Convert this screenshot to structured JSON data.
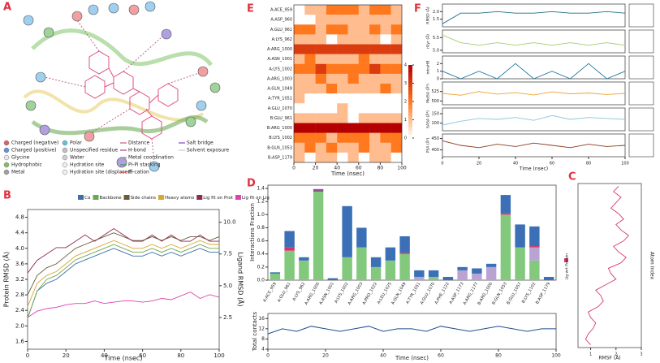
{
  "panel_labels": [
    "A",
    "B",
    "C",
    "D",
    "E",
    "F"
  ],
  "diagram_legend": [
    "Charged (negative)",
    "Charged (positive)",
    "Glycine",
    "Hydrophobic",
    "Metal",
    "Polar",
    "Unspecified residue",
    "Water",
    "Hydration site",
    "Hydration site (displaced)",
    "Distance",
    "H-bond",
    "Metal coordination",
    "Pi-Pi stacking",
    "Pi-cation",
    "Salt bridge",
    "Solvent exposure"
  ],
  "chart_data": [
    {
      "type": "line",
      "xlabel": "Time (nsec)",
      "ylabel": "Protein RMSD (Å)",
      "y2label": "Ligand RMSD (Å)",
      "x": [
        0,
        5,
        10,
        15,
        20,
        25,
        30,
        35,
        40,
        45,
        50,
        55,
        60,
        65,
        70,
        75,
        80,
        85,
        90,
        95,
        100
      ],
      "xlim": [
        0,
        100
      ],
      "xticks": [
        0,
        20,
        40,
        60,
        80,
        100
      ],
      "ylim": [
        1.4,
        5.0
      ],
      "yticks": [
        1.6,
        {
          "value": 2,
          "label": "2.0"
        },
        2.4,
        2.8,
        3.2,
        3.6,
        {
          "value": 4,
          "label": "4.0"
        },
        4.4,
        4.8
      ],
      "y2lim": [
        0,
        11
      ],
      "y2ticks": [
        2.5,
        {
          "value": 5,
          "label": "5.0"
        },
        7.5,
        {
          "value": 10,
          "label": "10.0"
        }
      ],
      "series": [
        {
          "name": "Cα",
          "color": "#3d6fa6",
          "values": [
            2.2,
            2.9,
            3.1,
            3.2,
            3.4,
            3.6,
            3.7,
            3.8,
            3.9,
            4.0,
            3.9,
            3.8,
            3.8,
            3.9,
            3.8,
            3.9,
            3.8,
            3.9,
            4.0,
            3.9,
            3.9
          ]
        },
        {
          "name": "Backbone",
          "color": "#6aa84f",
          "values": [
            2.2,
            2.9,
            3.2,
            3.3,
            3.5,
            3.7,
            3.8,
            3.9,
            4.0,
            4.1,
            4.0,
            3.9,
            3.9,
            4.0,
            3.9,
            4.0,
            3.9,
            4.0,
            4.1,
            4.0,
            4.0
          ]
        },
        {
          "name": "Side chains",
          "color": "#6b5a3a",
          "values": [
            2.8,
            3.3,
            3.5,
            3.6,
            3.8,
            4.0,
            4.1,
            4.2,
            4.3,
            4.4,
            4.3,
            4.2,
            4.2,
            4.3,
            4.2,
            4.3,
            4.2,
            4.3,
            4.3,
            4.2,
            4.3
          ]
        },
        {
          "name": "Heavy atoms",
          "color": "#d9a62e",
          "values": [
            2.5,
            3.1,
            3.3,
            3.4,
            3.6,
            3.8,
            3.9,
            4.0,
            4.1,
            4.2,
            4.1,
            4.0,
            4.0,
            4.1,
            4.0,
            4.1,
            4.0,
            4.1,
            4.2,
            4.1,
            4.1
          ]
        },
        {
          "name": "Lig fit on Prot",
          "color": "#8e2a4a",
          "axis": "y2",
          "values": [
            6.0,
            7.0,
            7.5,
            8.0,
            8.0,
            8.5,
            9.0,
            8.5,
            9.0,
            9.5,
            9.0,
            8.5,
            8.5,
            9.0,
            8.5,
            9.0,
            8.5,
            8.5,
            9.0,
            8.5,
            8.5
          ]
        },
        {
          "name": "Lig fit on Lig",
          "color": "#e040b0",
          "axis": "y2",
          "values": [
            2.5,
            3.0,
            3.2,
            3.3,
            3.5,
            3.6,
            3.6,
            3.8,
            3.6,
            3.7,
            3.8,
            3.8,
            3.7,
            3.8,
            4.0,
            3.9,
            4.2,
            4.5,
            4.0,
            4.3,
            4.1
          ]
        }
      ]
    },
    {
      "type": "stacked-bar",
      "ylabel": "Interactions Fraction",
      "categories": [
        "A:ACE_959",
        "A:GLU_961",
        "A:LYS_962",
        "A:ARG_1000",
        "A:ASN_1001",
        "A:LYS_1002",
        "A:ARG_1003",
        "A:PRO_1022",
        "A:LEU_1025",
        "A:GLN_1049",
        "A:TYR_1051",
        "A:GLU_1070",
        "A:PHE_1122",
        "A:ASP_1173",
        "A:ARG_1177",
        "B:ARG_1000",
        "B:GLN_1053",
        "B:GLU_1057",
        "B:LYS_1102",
        "B:ASP_1179"
      ],
      "ylim": [
        0,
        1.45
      ],
      "yticks": [
        {
          "value": 0,
          "label": "0.0"
        },
        {
          "value": 0.2,
          "label": "0.2"
        },
        {
          "value": 0.4,
          "label": "0.4"
        },
        {
          "value": 0.6,
          "label": "0.6"
        },
        {
          "value": 0.8,
          "label": "0.8"
        },
        {
          "value": 1,
          "label": "1.0"
        },
        {
          "value": 1.2,
          "label": "1.2"
        },
        {
          "value": 1.4,
          "label": "1.4"
        }
      ],
      "series": [
        {
          "color": "#82c97e",
          "values": [
            0.1,
            0.45,
            0.3,
            1.35,
            0,
            0.35,
            0.5,
            0.2,
            0.3,
            0.4,
            0,
            0.05,
            0,
            0,
            0,
            0,
            1.0,
            0.5,
            0.3,
            0
          ]
        },
        {
          "color": "#b9a3d3",
          "values": [
            0,
            0,
            0,
            0,
            0,
            0,
            0,
            0,
            0,
            0,
            0.05,
            0,
            0,
            0.15,
            0.1,
            0.2,
            0,
            0,
            0.2,
            0
          ]
        },
        {
          "color": "#d6336c",
          "values": [
            0,
            0.05,
            0,
            0.02,
            0,
            0,
            0,
            0,
            0,
            0.02,
            0,
            0,
            0,
            0,
            0,
            0,
            0.02,
            0,
            0.02,
            0
          ]
        },
        {
          "color": "#3b6fb6",
          "values": [
            0.02,
            0.25,
            0.05,
            0.02,
            0.03,
            0.78,
            0.3,
            0.15,
            0.2,
            0.25,
            0.1,
            0.1,
            0.05,
            0.05,
            0.08,
            0.05,
            0.28,
            0.35,
            0.3,
            0.05
          ]
        }
      ]
    },
    {
      "type": "line",
      "xlabel": "Time (nsec)",
      "ylabel": "Total contacts",
      "color": "#1f4e8c",
      "x": [
        0,
        5,
        10,
        15,
        20,
        25,
        30,
        35,
        40,
        45,
        50,
        55,
        60,
        65,
        70,
        75,
        80,
        85,
        90,
        95,
        100
      ],
      "values": [
        10,
        12,
        11,
        13,
        12,
        11,
        12,
        13,
        11,
        12,
        12,
        11,
        13,
        12,
        11,
        12,
        13,
        12,
        11,
        12,
        12
      ],
      "xlim": [
        0,
        100
      ],
      "xticks": [
        0,
        20,
        40,
        60,
        80,
        100
      ],
      "ylim": [
        4,
        18
      ],
      "yticks": [
        4,
        8,
        12,
        16
      ]
    },
    {
      "type": "heatmap",
      "xlabel": "Time (nsec)",
      "rows": [
        "A:ACE_959",
        "A:ASP_960",
        "A:GLU_961",
        "A:LYS_962",
        "A:ARG_1000",
        "A:ASN_1001",
        "A:LYS_1002",
        "A:ARG_1003",
        "A:GLN_1049",
        "A:TYR_1051",
        "A:GLU_1070",
        "B:GLU_961",
        "B:ARG_1000",
        "B:LYS_1002",
        "B:GLN_1053",
        "B:ASP_1179"
      ],
      "xlim": [
        0,
        100
      ],
      "xticks": [
        0,
        20,
        40,
        60,
        80,
        100
      ],
      "clim": [
        0,
        4
      ],
      "cticks": [
        0,
        1,
        2,
        3,
        4
      ],
      "values": [
        [
          0,
          1,
          1,
          2,
          2,
          2,
          1,
          2,
          2,
          1
        ],
        [
          0,
          0,
          1,
          1,
          1,
          1,
          1,
          1,
          1,
          1
        ],
        [
          2,
          2,
          1,
          2,
          2,
          1,
          1,
          2,
          1,
          2
        ],
        [
          1,
          1,
          1,
          0,
          1,
          1,
          1,
          1,
          0,
          1
        ],
        [
          3,
          3,
          3,
          3,
          3,
          3,
          3,
          3,
          3,
          3
        ],
        [
          1,
          2,
          1,
          1,
          1,
          1,
          2,
          1,
          1,
          1
        ],
        [
          2,
          2,
          3,
          2,
          2,
          2,
          2,
          3,
          2,
          2
        ],
        [
          1,
          1,
          2,
          1,
          1,
          2,
          1,
          1,
          1,
          1
        ],
        [
          1,
          1,
          1,
          2,
          1,
          1,
          1,
          1,
          2,
          1
        ],
        [
          1,
          0,
          0,
          0,
          0,
          0,
          0,
          0,
          0,
          0
        ],
        [
          0,
          0,
          0,
          0,
          1,
          0,
          0,
          0,
          0,
          0
        ],
        [
          1,
          1,
          1,
          1,
          1,
          0,
          1,
          1,
          1,
          1
        ],
        [
          4,
          4,
          4,
          4,
          4,
          4,
          4,
          4,
          4,
          4
        ],
        [
          2,
          2,
          2,
          1,
          2,
          2,
          2,
          1,
          2,
          2
        ],
        [
          1,
          2,
          1,
          2,
          1,
          1,
          2,
          1,
          1,
          2
        ],
        [
          1,
          0,
          1,
          1,
          0,
          1,
          0,
          1,
          1,
          0
        ]
      ]
    },
    {
      "type": "line",
      "ylabel": "RMSD (Å)",
      "color": "#1f6f8b",
      "x": [
        0,
        10,
        20,
        30,
        40,
        50,
        60,
        70,
        80,
        90,
        100
      ],
      "values": [
        1.2,
        1.9,
        1.9,
        2.0,
        1.9,
        1.9,
        2.0,
        1.9,
        1.9,
        2.0,
        1.9
      ],
      "xlim": [
        0,
        100
      ],
      "ylim": [
        1,
        2.5
      ],
      "yticks": [
        1.5,
        {
          "value": 2,
          "label": "2.0"
        }
      ]
    },
    {
      "type": "line",
      "ylabel": "rGyr (Å)",
      "color": "#9dd26b",
      "x": [
        0,
        10,
        20,
        30,
        40,
        50,
        60,
        70,
        80,
        90,
        100
      ],
      "values": [
        5.6,
        5.3,
        5.2,
        5.3,
        5.2,
        5.3,
        5.2,
        5.3,
        5.2,
        5.3,
        5.2
      ],
      "xlim": [
        0,
        100
      ],
      "ylim": [
        4.9,
        5.8
      ],
      "yticks": [
        {
          "value": 5,
          "label": "5.0"
        },
        5.5
      ]
    },
    {
      "type": "line",
      "ylabel": "intraHB",
      "color": "#1f77a0",
      "x": [
        0,
        10,
        20,
        30,
        40,
        50,
        60,
        70,
        80,
        90,
        100
      ],
      "values": [
        1,
        0,
        1,
        0,
        2,
        0,
        1,
        0,
        2,
        0,
        1
      ],
      "xlim": [
        0,
        100
      ],
      "ylim": [
        0,
        3
      ],
      "yticks": [
        0,
        1,
        2
      ]
    },
    {
      "type": "line",
      "ylabel": "MolSA (Å²)",
      "color": "#f0a030",
      "x": [
        0,
        10,
        20,
        30,
        40,
        50,
        60,
        70,
        80,
        90,
        100
      ],
      "values": [
        520,
        515,
        525,
        518,
        522,
        516,
        524,
        519,
        521,
        517,
        520
      ],
      "xlim": [
        0,
        100
      ],
      "ylim": [
        490,
        550
      ],
      "yticks": [
        500,
        525
      ]
    },
    {
      "type": "line",
      "ylabel": "SASA (Å²)",
      "color": "#8ac4e0",
      "x": [
        0,
        10,
        20,
        30,
        40,
        50,
        60,
        70,
        80,
        90,
        100
      ],
      "values": [
        90,
        110,
        125,
        120,
        130,
        115,
        140,
        120,
        130,
        125,
        120
      ],
      "xlim": [
        0,
        100
      ],
      "ylim": [
        60,
        180
      ],
      "yticks": [
        100,
        150
      ]
    },
    {
      "type": "line",
      "ylabel": "PSA (Å²)",
      "xlabel": "Time (nsec)",
      "color": "#8b3a1a",
      "x": [
        0,
        10,
        20,
        30,
        40,
        50,
        60,
        70,
        80,
        90,
        100
      ],
      "values": [
        440,
        420,
        410,
        425,
        415,
        430,
        420,
        410,
        425,
        415,
        420
      ],
      "xlim": [
        0,
        100
      ],
      "xticks": [
        0,
        20,
        40,
        60,
        80,
        100
      ],
      "ylim": [
        370,
        470
      ],
      "yticks": [
        400,
        450
      ]
    },
    {
      "type": "line",
      "orientation": "horizontal",
      "xlabel": "Atom Index",
      "ylabel": "RMSF (Å)",
      "color": "#d63a6a",
      "legend_name": "Lig wrt Protein",
      "x": [
        1,
        2,
        3,
        4,
        5,
        6,
        7,
        8,
        9,
        10,
        11,
        12,
        13,
        14,
        15,
        16,
        17,
        18,
        19,
        20,
        21,
        22,
        23,
        24,
        25,
        26,
        27,
        28,
        29,
        30
      ],
      "values": [
        1.0,
        0.8,
        0.9,
        1.1,
        1.2,
        1.0,
        0.9,
        1.3,
        1.5,
        1.4,
        1.2,
        1.6,
        2.0,
        1.8,
        1.7,
        2.2,
        2.4,
        2.1,
        1.9,
        2.3,
        2.5,
        2.2,
        2.0,
        2.3,
        2.1,
        1.8,
        2.0,
        2.2,
        1.9,
        2.1
      ],
      "xlim": [
        0.5,
        30.5
      ],
      "ylim": [
        0.5,
        3
      ],
      "yticks": [
        1,
        2,
        3
      ]
    }
  ]
}
